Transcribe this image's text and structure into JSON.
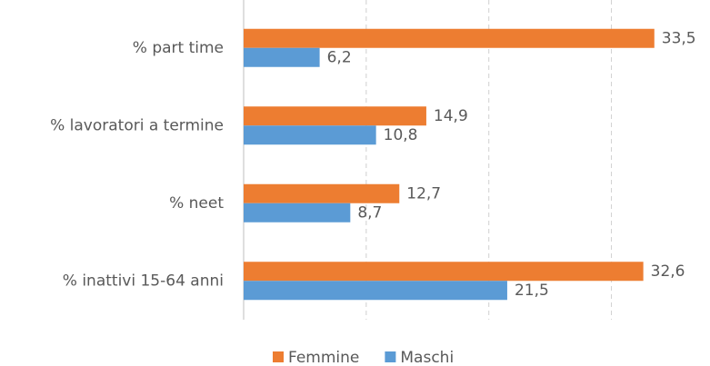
{
  "chart_data": {
    "type": "bar",
    "orientation": "horizontal",
    "categories": [
      "% part time",
      "% lavoratori a termine",
      "% neet",
      "% inattivi 15-64 anni"
    ],
    "series": [
      {
        "name": "Femmine",
        "color": "#ed7d31",
        "values": [
          33.5,
          14.9,
          12.7,
          32.6
        ],
        "value_labels": [
          "33,5",
          "14,9",
          "12,7",
          "32,6"
        ]
      },
      {
        "name": "Maschi",
        "color": "#5b9bd5",
        "values": [
          6.2,
          10.8,
          8.7,
          21.5
        ],
        "value_labels": [
          "6,2",
          "10,8",
          "8,7",
          "21,5"
        ]
      }
    ],
    "xlim": [
      0,
      35
    ],
    "xticks": [
      0,
      10,
      20,
      30
    ],
    "grid": true,
    "legend": "bottom"
  }
}
